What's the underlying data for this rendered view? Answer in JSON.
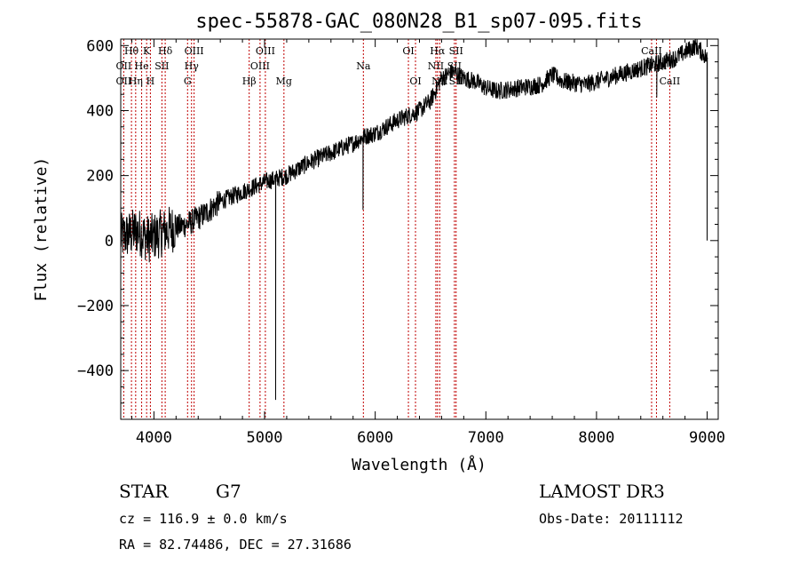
{
  "chart_data": {
    "type": "line",
    "title": "spec-55878-GAC_080N28_B1_sp07-095.fits",
    "xlabel": "Wavelength (Å)",
    "ylabel": "Flux (relative)",
    "xlim": [
      3700,
      9100
    ],
    "ylim": [
      -550,
      620
    ],
    "x_ticks": [
      4000,
      5000,
      6000,
      7000,
      8000,
      9000
    ],
    "x_tick_labels": [
      "4000",
      "5000",
      "6000",
      "7000",
      "8000",
      "9000"
    ],
    "y_ticks": [
      -400,
      -200,
      0,
      200,
      400,
      600
    ],
    "y_tick_labels": [
      "−400",
      "−200",
      "0",
      "200",
      "400",
      "600"
    ],
    "spectrum_anchor_points": {
      "x": [
        3700,
        3780,
        3850,
        3950,
        4050,
        4150,
        4300,
        4450,
        4600,
        4800,
        5000,
        5200,
        5400,
        5600,
        5800,
        5900,
        6000,
        6200,
        6400,
        6500,
        6600,
        6700,
        6800,
        6900,
        7000,
        7100,
        7300,
        7500,
        7600,
        7700,
        7900,
        8100,
        8300,
        8500,
        8600,
        8700,
        8800,
        8900,
        9000
      ],
      "y": [
        10,
        20,
        30,
        5,
        20,
        35,
        50,
        80,
        120,
        150,
        180,
        200,
        240,
        270,
        300,
        320,
        330,
        370,
        400,
        430,
        500,
        520,
        500,
        490,
        470,
        460,
        470,
        480,
        510,
        490,
        480,
        500,
        520,
        540,
        550,
        560,
        580,
        600,
        560
      ]
    },
    "spectral_features": [
      {
        "x": 5100,
        "y": -490,
        "note": "narrow negative spike"
      },
      {
        "x": 5890,
        "y": 95,
        "note": "Na absorption"
      },
      {
        "x": 8545,
        "y": 440,
        "note": "CaII absorption"
      },
      {
        "x": 9000,
        "y": 0,
        "note": "edge drop"
      }
    ],
    "emission_lines": [
      {
        "label": "Hθ",
        "x": 3797,
        "row": 0
      },
      {
        "label": "K",
        "x": 3934,
        "row": 0
      },
      {
        "label": "Hδ",
        "x": 4102,
        "row": 0
      },
      {
        "label": "OIII",
        "x": 4363,
        "row": 0
      },
      {
        "label": "OIII",
        "x": 5007,
        "row": 0
      },
      {
        "label": "OI",
        "x": 6300,
        "row": 0
      },
      {
        "label": "Hα",
        "x": 6563,
        "row": 0
      },
      {
        "label": "SII",
        "x": 6731,
        "row": 0
      },
      {
        "label": "CaII",
        "x": 8498,
        "row": 0
      },
      {
        "label": "OII",
        "x": 3727,
        "row": 1
      },
      {
        "label": "He",
        "x": 3889,
        "row": 1
      },
      {
        "label": "SII",
        "x": 4072,
        "row": 1
      },
      {
        "label": "Hγ",
        "x": 4340,
        "row": 1
      },
      {
        "label": "OIII",
        "x": 4959,
        "row": 1
      },
      {
        "label": "Na",
        "x": 5893,
        "row": 1
      },
      {
        "label": "NII",
        "x": 6548,
        "row": 1
      },
      {
        "label": "SII",
        "x": 6716,
        "row": 1
      },
      {
        "label": "CaII",
        "x": 8542,
        "row": 1
      },
      {
        "label": "OII",
        "x": 3727,
        "row": 2
      },
      {
        "label": "Hη",
        "x": 3835,
        "row": 2
      },
      {
        "label": "H",
        "x": 3968,
        "row": 2
      },
      {
        "label": "G",
        "x": 4304,
        "row": 2
      },
      {
        "label": "Hβ",
        "x": 4861,
        "row": 2
      },
      {
        "label": "Mg",
        "x": 5175,
        "row": 2
      },
      {
        "label": "OI",
        "x": 6364,
        "row": 2
      },
      {
        "label": "NII",
        "x": 6583,
        "row": 2
      },
      {
        "label": "SII",
        "x": 6731,
        "row": 2
      },
      {
        "label": "CaII",
        "x": 8662,
        "row": 2
      }
    ]
  },
  "info": {
    "object_class": "STAR",
    "subclass": "G7",
    "survey": "LAMOST DR3",
    "cz": "cz = 116.9 ± 0.0 km/s",
    "obs_date": "Obs-Date: 20111112",
    "coords": "RA =  82.74486, DEC =  27.31686"
  }
}
